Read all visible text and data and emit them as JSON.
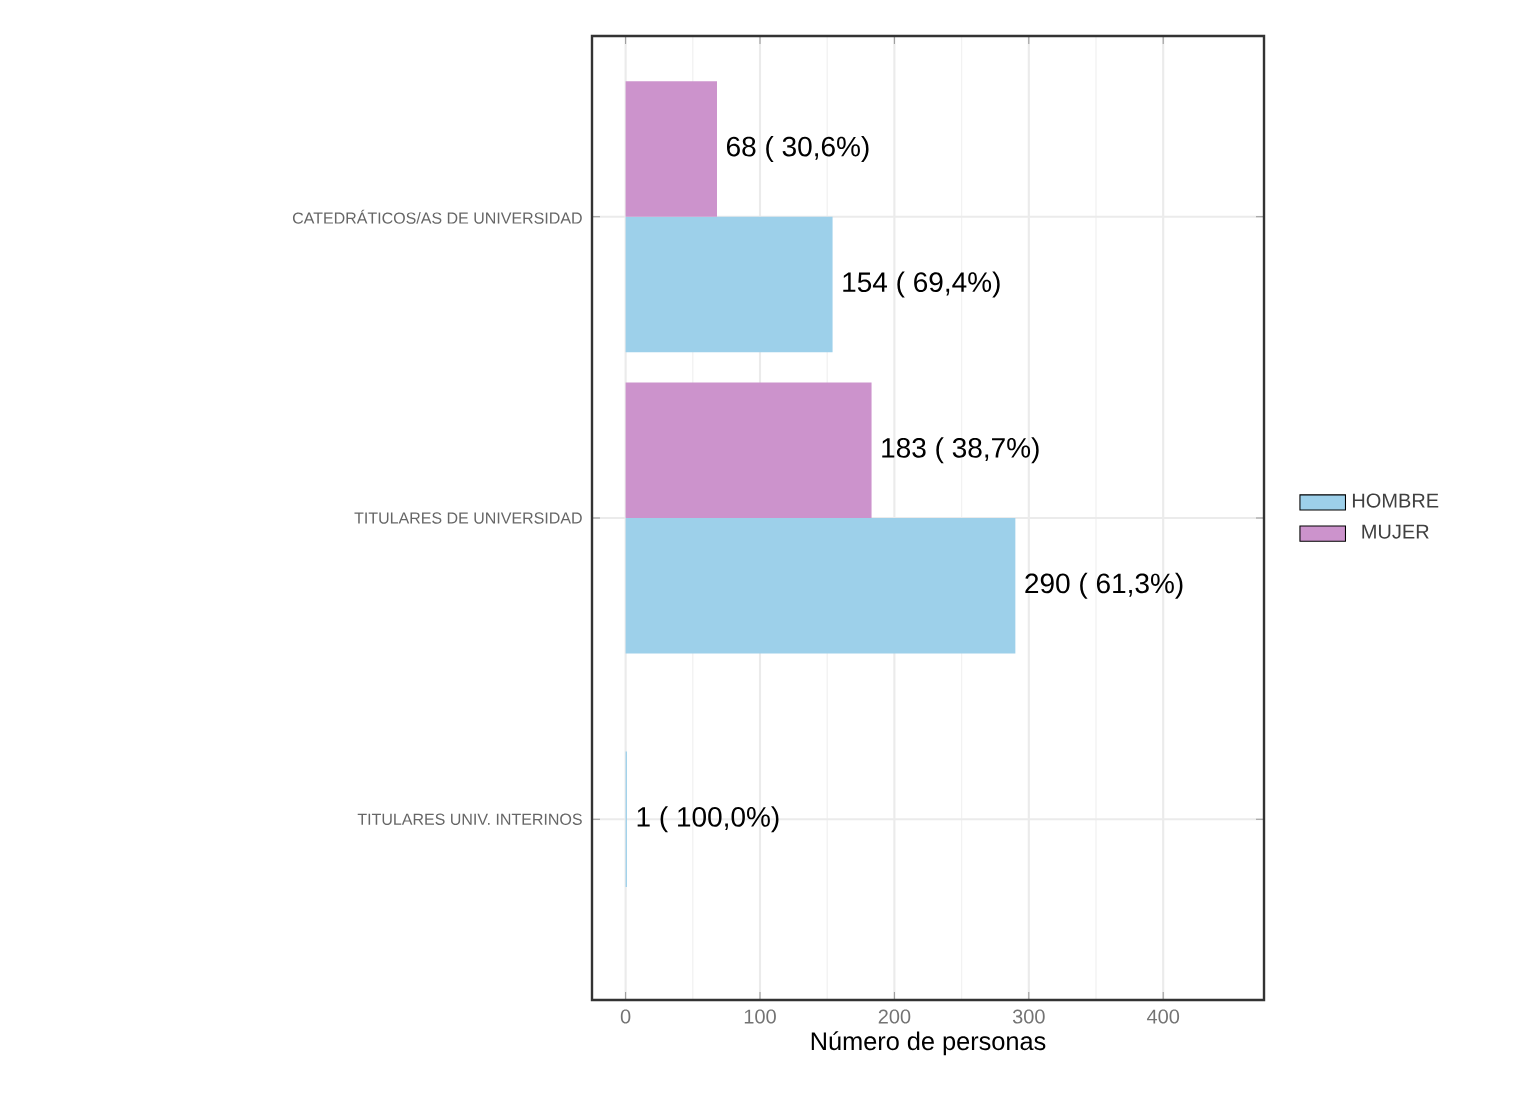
{
  "chart_data": {
    "type": "bar",
    "orientation": "horizontal",
    "xlabel": "Número de personas",
    "categories": [
      "CATEDRÁTICOS/AS DE UNIVERSIDAD",
      "TITULARES DE UNIVERSIDAD",
      "TITULARES UNIV. INTERINOS"
    ],
    "series": [
      {
        "name": "HOMBRE",
        "color": "#9dd0ea",
        "values": [
          154,
          290,
          1
        ],
        "value_labels": [
          "154 ( 69,4%)",
          "290 ( 61,3%)",
          "1 ( 100,0%)"
        ]
      },
      {
        "name": "MUJER",
        "color": "#cc93cc",
        "values": [
          68,
          183,
          null
        ],
        "value_labels": [
          "68 ( 30,6%)",
          "183 ( 38,7%)",
          null
        ]
      }
    ],
    "xlim": [
      -25,
      475
    ],
    "xticks": [
      0,
      100,
      200,
      300,
      400
    ],
    "grid": true,
    "legend": "right"
  }
}
